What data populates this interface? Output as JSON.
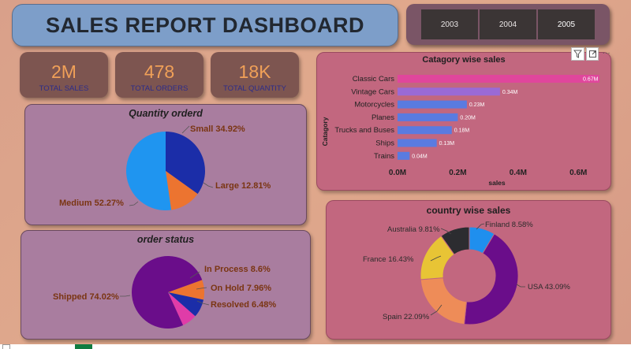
{
  "header": {
    "title": "SALES  REPORT DASHBOARD"
  },
  "year_slicer": {
    "options": [
      "2003",
      "2004",
      "2005"
    ],
    "selected": "2005"
  },
  "kpis": [
    {
      "value": "2M",
      "label": "TOTAL SALES"
    },
    {
      "value": "478",
      "label": "TOTAL ORDERS"
    },
    {
      "value": "18K",
      "label": "TOTAL QUANTITY"
    }
  ],
  "visual_header": {
    "filter_icon": "filter-icon",
    "focus_icon": "focus-mode-icon",
    "more_icon": "more-options-icon",
    "more_glyph": "···"
  },
  "colors": {
    "background": "#dca58a",
    "title_box": "#7d9ec9",
    "kpi_value": "#f0a058",
    "bar_highlight": "#e0469c",
    "bar_default": "#5a7be0"
  },
  "chart_data": [
    {
      "id": "quantity",
      "type": "pie",
      "title": "Quantity orderd",
      "labels": [
        "Small",
        "Large",
        "Medium"
      ],
      "values": [
        34.92,
        12.81,
        52.27
      ],
      "display": [
        "Small 34.92%",
        "Large 12.81%",
        "Medium 52.27%"
      ],
      "colors": [
        "#1b2da8",
        "#ec7430",
        "#1f95f0"
      ]
    },
    {
      "id": "status",
      "type": "pie",
      "title": "order status",
      "labels": [
        "In Process",
        "On Hold",
        "Resolved",
        "Shipped"
      ],
      "values": [
        8.6,
        7.96,
        6.48,
        74.02
      ],
      "display": [
        "In Process 8.6%",
        "On Hold 7.96%",
        "Resolved 6.48%",
        "Shipped 74.02%"
      ],
      "colors": [
        "#ec7430",
        "#1b2da8",
        "#e03ca8",
        "#6a0d8a"
      ]
    },
    {
      "id": "category",
      "type": "bar",
      "orientation": "horizontal",
      "title": "Catagory wise sales",
      "ylabel": "Catagory",
      "xlabel": "sales",
      "categories": [
        "Classic Cars",
        "Vintage Cars",
        "Motorcycles",
        "Planes",
        "Trucks and Buses",
        "Ships",
        "Trains"
      ],
      "values": [
        0.67,
        0.34,
        0.23,
        0.2,
        0.18,
        0.13,
        0.04
      ],
      "value_labels": [
        "0.67M",
        "0.34M",
        "0.23M",
        "0.20M",
        "0.18M",
        "0.13M",
        "0.04M"
      ],
      "xticks": [
        "0.0M",
        "0.2M",
        "0.4M",
        "0.6M"
      ],
      "xlim": [
        0,
        0.67
      ],
      "grid": false
    },
    {
      "id": "country",
      "type": "pie",
      "donut": true,
      "title": "country wise sales",
      "labels": [
        "Finland",
        "USA",
        "Spain",
        "France",
        "Australia"
      ],
      "values": [
        8.58,
        43.09,
        22.09,
        16.43,
        9.81
      ],
      "display": [
        "Finland 8.58%",
        "USA 43.09%",
        "Spain 22.09%",
        "France 16.43%",
        "Australia 9.81%"
      ],
      "colors": [
        "#1f8fee",
        "#6a0d8a",
        "#ee8c58",
        "#e8c435",
        "#2c2c30"
      ]
    }
  ]
}
